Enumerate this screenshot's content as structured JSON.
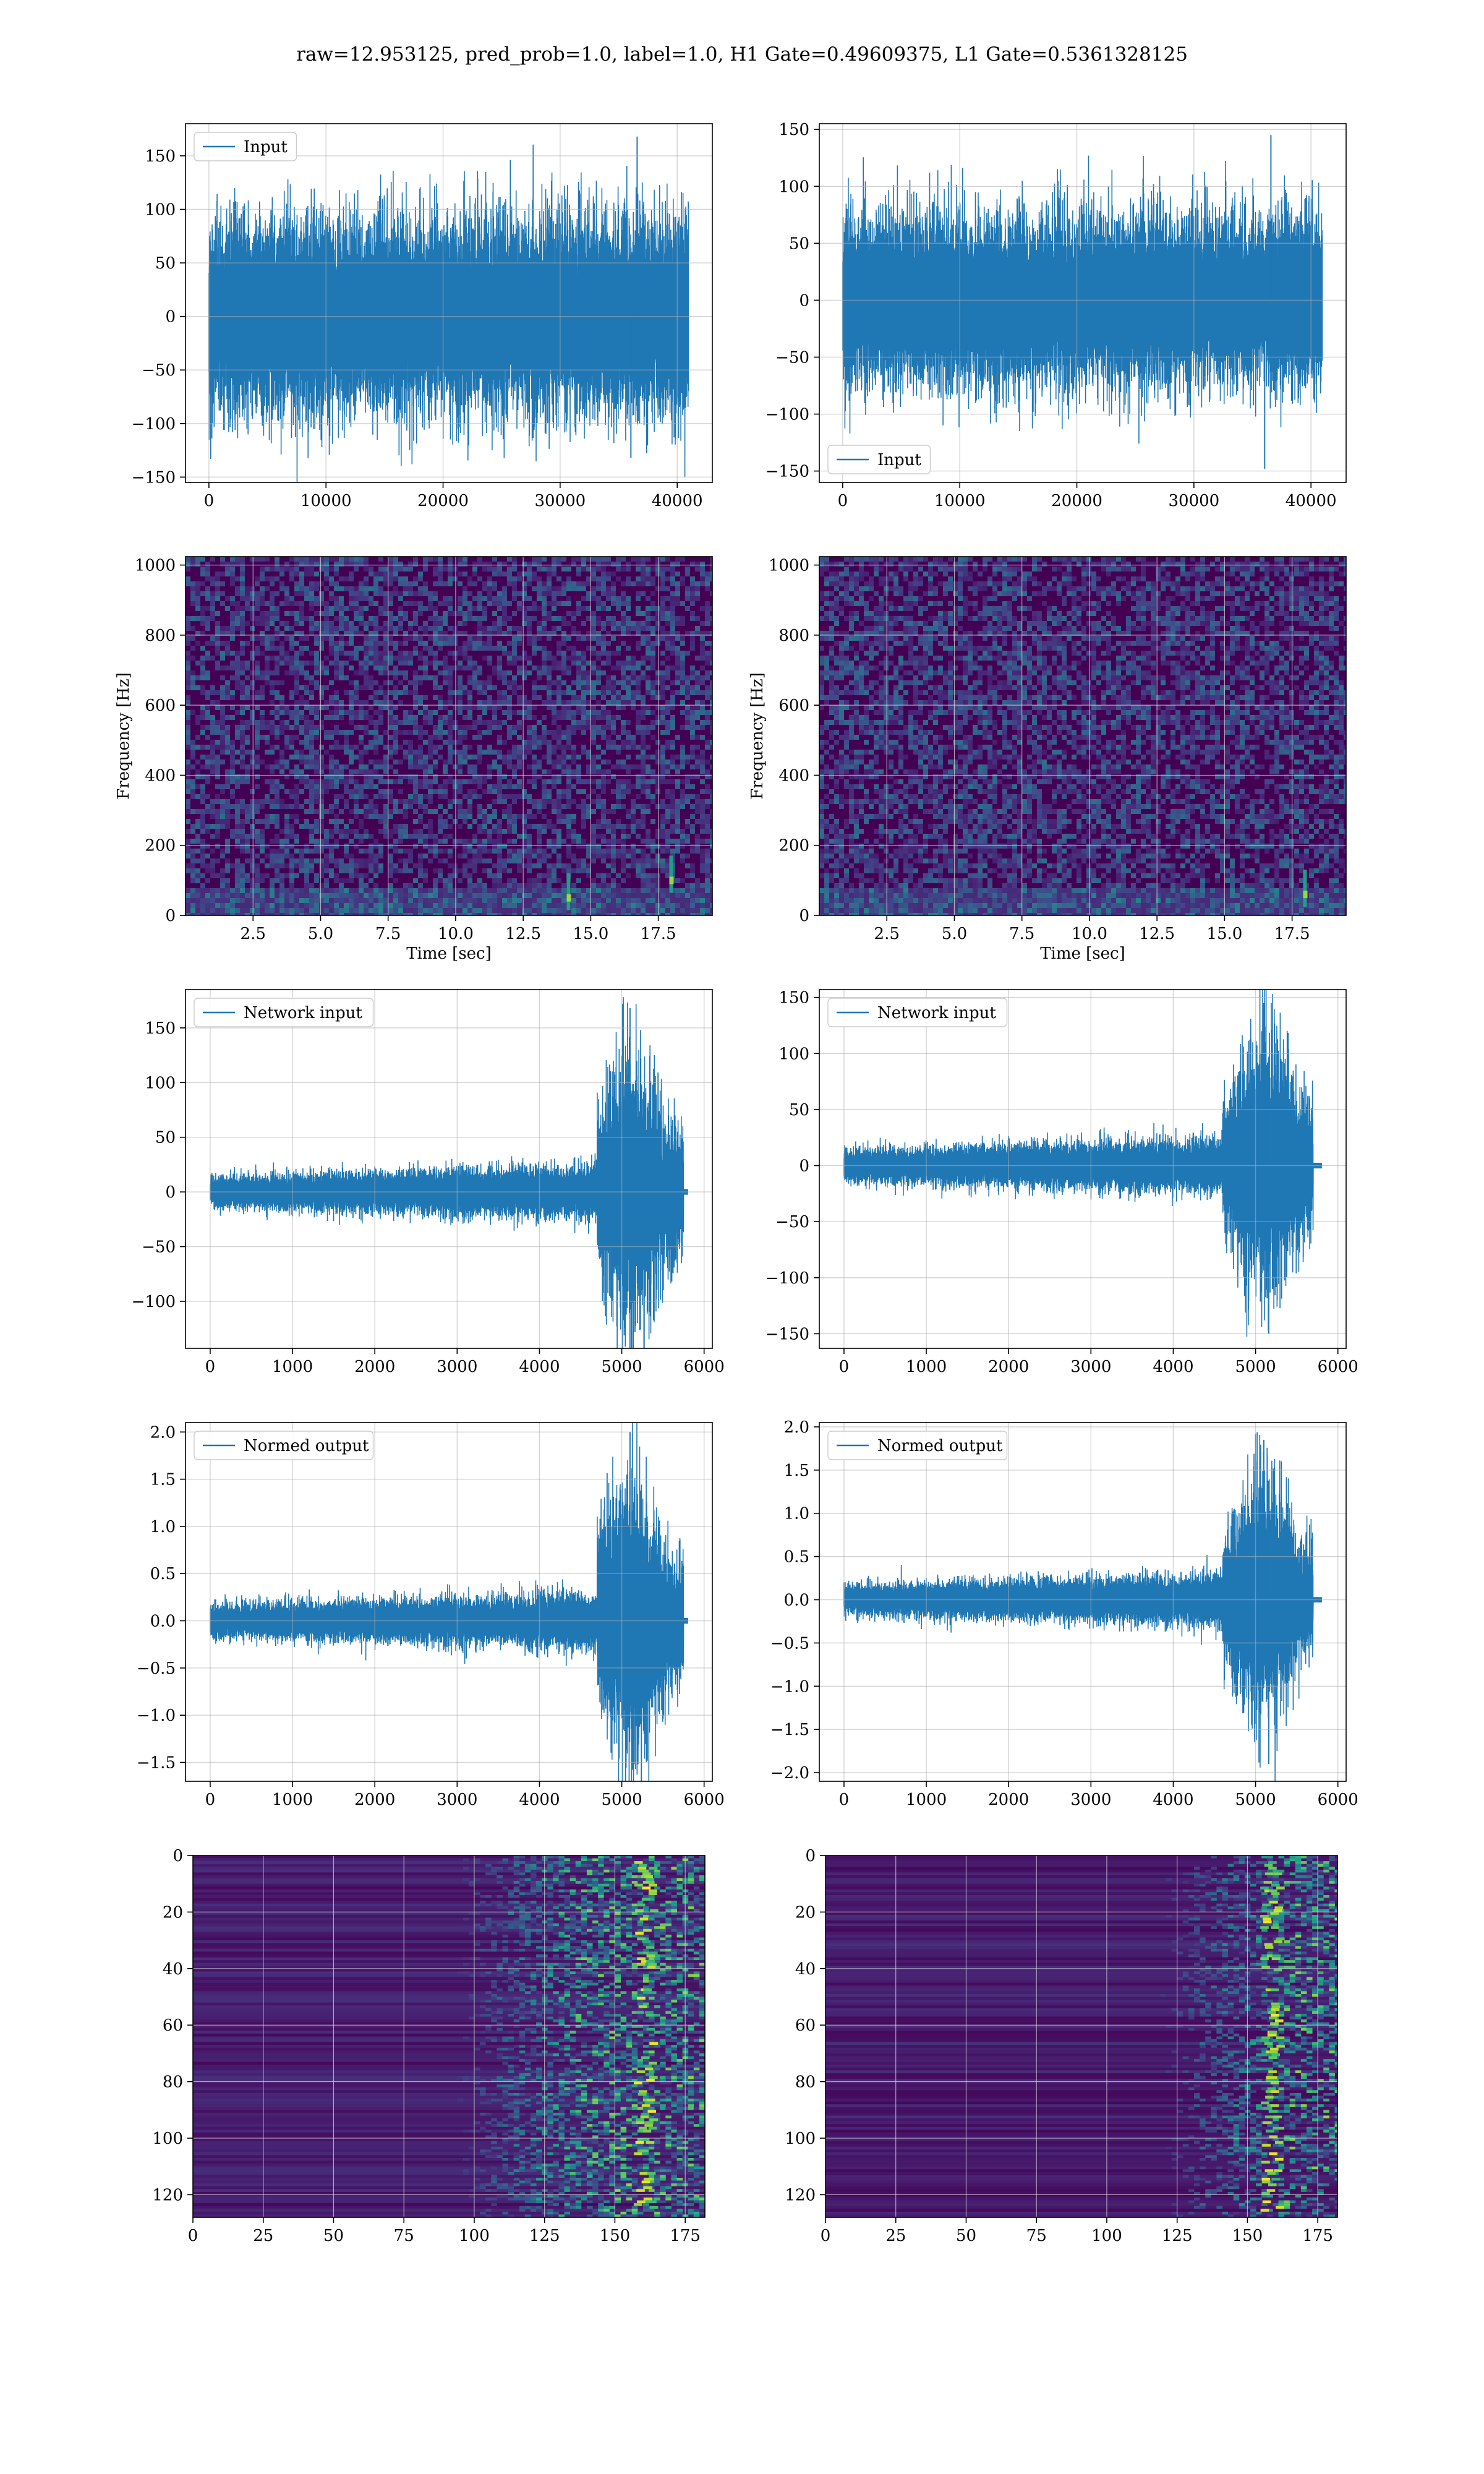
{
  "figure": {
    "suptitle": "raw=12.953125, pred_prob=1.0, label=1.0, H1 Gate=0.49609375, L1 Gate=0.5361328125"
  },
  "colors": {
    "line": "#1f77b4",
    "grid": "#b0b0b0",
    "viridis": [
      "#440154",
      "#482475",
      "#414487",
      "#355f8d",
      "#2a788e",
      "#21918c",
      "#22a884",
      "#44bf70",
      "#7ad151",
      "#bddf26",
      "#fde725"
    ]
  },
  "chart_data": [
    {
      "id": "h1-input",
      "type": "line",
      "grid": true,
      "legend": {
        "label": "Input",
        "loc": "upper-left"
      },
      "xlim": [
        -2000,
        43000
      ],
      "ylim": [
        -155,
        180
      ],
      "xticks": [
        0,
        10000,
        20000,
        30000,
        40000
      ],
      "yticks": [
        -150,
        -100,
        -50,
        0,
        50,
        100,
        150
      ],
      "signal": {
        "length": 40960,
        "envelope": "stationary",
        "core_amp": 60,
        "spike_max": 168,
        "spike_min": -132,
        "end_pad": "none"
      }
    },
    {
      "id": "l1-input",
      "type": "line",
      "grid": true,
      "legend": {
        "label": "Input",
        "loc": "lower-left"
      },
      "xlim": [
        -2000,
        43000
      ],
      "ylim": [
        -160,
        155
      ],
      "xticks": [
        0,
        10000,
        20000,
        30000,
        40000
      ],
      "yticks": [
        -150,
        -100,
        -50,
        0,
        50,
        100,
        150
      ],
      "signal": {
        "length": 40960,
        "envelope": "stationary",
        "core_amp": 50,
        "spike_max": 145,
        "spike_min": -148,
        "end_pad": "none"
      }
    },
    {
      "id": "h1-spectrogram",
      "type": "heatmap",
      "grid": true,
      "xlabel": "Time [sec]",
      "ylabel": "Frequency [Hz]",
      "xlim": [
        0,
        19.5
      ],
      "ylim": [
        0,
        1024
      ],
      "xticks": [
        2.5,
        5.0,
        7.5,
        10.0,
        12.5,
        15.0,
        17.5
      ],
      "yticks": [
        0,
        200,
        400,
        600,
        800,
        1000
      ],
      "texture": "noise",
      "bright_marks": [
        [
          14.2,
          50
        ],
        [
          18.0,
          100
        ]
      ]
    },
    {
      "id": "l1-spectrogram",
      "type": "heatmap",
      "grid": true,
      "xlabel": "Time [sec]",
      "ylabel": "Frequency [Hz]",
      "xlim": [
        0,
        19.5
      ],
      "ylim": [
        0,
        1024
      ],
      "xticks": [
        2.5,
        5.0,
        7.5,
        10.0,
        12.5,
        15.0,
        17.5
      ],
      "yticks": [
        0,
        200,
        400,
        600,
        800,
        1000
      ],
      "texture": "noise",
      "bright_marks": [
        [
          18.0,
          60
        ]
      ]
    },
    {
      "id": "h1-network-input",
      "type": "line",
      "grid": true,
      "legend": {
        "label": "Network input",
        "loc": "upper-left"
      },
      "xlim": [
        -300,
        6100
      ],
      "ylim": [
        -143,
        185
      ],
      "xticks": [
        0,
        1000,
        2000,
        3000,
        4000,
        5000,
        6000
      ],
      "yticks": [
        -100,
        -50,
        0,
        50,
        100,
        150
      ],
      "signal": {
        "length": 5800,
        "envelope": "chirp",
        "base_amp": 10,
        "burst_start": 4700,
        "burst_end": 5750,
        "peak_at": 5100,
        "spike_max": 168,
        "spike_min": -128,
        "end_pad": "flat"
      }
    },
    {
      "id": "l1-network-input",
      "type": "line",
      "grid": true,
      "legend": {
        "label": "Network input",
        "loc": "upper-left"
      },
      "xlim": [
        -300,
        6100
      ],
      "ylim": [
        -163,
        157
      ],
      "xticks": [
        0,
        1000,
        2000,
        3000,
        4000,
        5000,
        6000
      ],
      "yticks": [
        -150,
        -100,
        -50,
        0,
        50,
        100,
        150
      ],
      "signal": {
        "length": 5800,
        "envelope": "chirp",
        "base_amp": 10,
        "burst_start": 4600,
        "burst_end": 5700,
        "peak_at": 5100,
        "spike_max": 145,
        "spike_min": -150,
        "end_pad": "flat"
      }
    },
    {
      "id": "h1-normed-output",
      "type": "line",
      "grid": true,
      "legend": {
        "label": "Normed output",
        "loc": "upper-left"
      },
      "xlim": [
        -300,
        6100
      ],
      "ylim": [
        -1.7,
        2.1
      ],
      "xticks": [
        0,
        1000,
        2000,
        3000,
        4000,
        5000,
        6000
      ],
      "yticks": [
        -1.5,
        -1.0,
        -0.5,
        0.0,
        0.5,
        1.0,
        1.5,
        2.0
      ],
      "signal": {
        "length": 5800,
        "envelope": "chirp",
        "base_amp": 0.12,
        "burst_start": 4700,
        "burst_end": 5750,
        "peak_at": 5100,
        "spike_max": 2.0,
        "spike_min": -1.52,
        "end_pad": "flat"
      }
    },
    {
      "id": "l1-normed-output",
      "type": "line",
      "grid": true,
      "legend": {
        "label": "Normed output",
        "loc": "upper-left"
      },
      "xlim": [
        -300,
        6100
      ],
      "ylim": [
        -2.1,
        2.05
      ],
      "xticks": [
        0,
        1000,
        2000,
        3000,
        4000,
        5000,
        6000
      ],
      "yticks": [
        -2.0,
        -1.5,
        -1.0,
        -0.5,
        0.0,
        0.5,
        1.0,
        1.5,
        2.0
      ],
      "signal": {
        "length": 5800,
        "envelope": "chirp",
        "base_amp": 0.12,
        "burst_start": 4600,
        "burst_end": 5700,
        "peak_at": 5100,
        "spike_max": 1.85,
        "spike_min": -1.9,
        "end_pad": "flat"
      }
    },
    {
      "id": "h1-feature-map",
      "type": "heatmap",
      "grid": true,
      "y_inverted": true,
      "xlim": [
        0,
        182
      ],
      "ylim": [
        0,
        128
      ],
      "xticks": [
        0,
        25,
        50,
        75,
        100,
        125,
        150,
        175
      ],
      "yticks": [
        0,
        20,
        40,
        60,
        80,
        100,
        120
      ],
      "texture": "rows",
      "activity_start": 100,
      "hot_columns": [
        158,
        161
      ]
    },
    {
      "id": "l1-feature-map",
      "type": "heatmap",
      "grid": true,
      "y_inverted": true,
      "xlim": [
        0,
        182
      ],
      "ylim": [
        0,
        128
      ],
      "xticks": [
        0,
        25,
        50,
        75,
        100,
        125,
        150,
        175
      ],
      "yticks": [
        0,
        20,
        40,
        60,
        80,
        100,
        120
      ],
      "texture": "rows",
      "activity_start": 125,
      "hot_columns": [
        156,
        159
      ]
    }
  ]
}
